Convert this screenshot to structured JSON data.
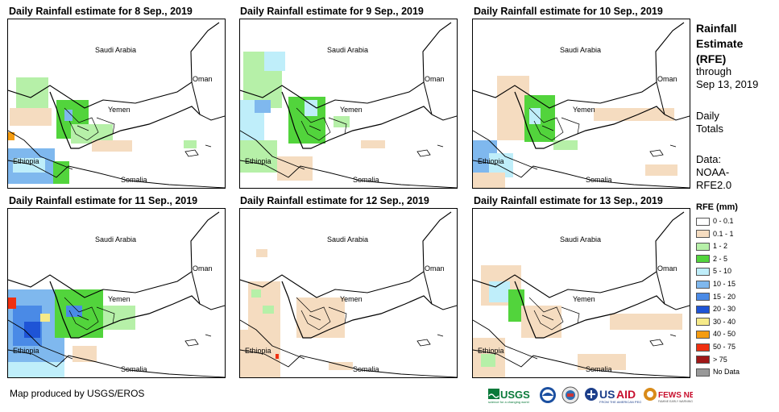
{
  "panels": [
    {
      "title": "Daily Rainfall estimate for 8 Sep., 2019"
    },
    {
      "title": "Daily Rainfall estimate for 9 Sep., 2019"
    },
    {
      "title": "Daily Rainfall estimate for 10 Sep., 2019"
    },
    {
      "title": "Daily Rainfall estimate for 11 Sep., 2019"
    },
    {
      "title": "Daily Rainfall estimate for 12 Sep., 2019"
    },
    {
      "title": "Daily Rainfall estimate for 13 Sep., 2019"
    }
  ],
  "map_labels": {
    "saudi": "Saudi Arabia",
    "oman": "Oman",
    "yemen": "Yemen",
    "ethiopia": "Ethiopia",
    "somalia": "Somalia"
  },
  "legend": {
    "heading": [
      "Rainfall",
      "Estimate",
      "(RFE)"
    ],
    "through": "through",
    "date": "Sep 13, 2019",
    "daily": [
      "Daily",
      "Totals"
    ],
    "data": [
      "Data:",
      "NOAA-",
      "RFE2.0"
    ],
    "rfe_title": "RFE (mm)",
    "items": [
      {
        "label": "0 - 0.1",
        "color": "#ffffff"
      },
      {
        "label": "0.1 - 1",
        "color": "#f5dcc0"
      },
      {
        "label": "1 - 2",
        "color": "#b6f0a8"
      },
      {
        "label": "2 - 5",
        "color": "#52d43c"
      },
      {
        "label": "5 - 10",
        "color": "#bfeefa"
      },
      {
        "label": "10 - 15",
        "color": "#7fb8ee"
      },
      {
        "label": "15 - 20",
        "color": "#4a8ae6"
      },
      {
        "label": "20 - 30",
        "color": "#1e54d6"
      },
      {
        "label": "30 - 40",
        "color": "#f6ea88"
      },
      {
        "label": "40 - 50",
        "color": "#f59c10"
      },
      {
        "label": "50 - 75",
        "color": "#f03010"
      },
      {
        "label": "> 75",
        "color": "#a01818"
      },
      {
        "label": "No Data",
        "color": "#999999"
      }
    ]
  },
  "credit": "Map produced by USGS/EROS",
  "logos": [
    "USGS",
    "NOAA",
    "DOI",
    "USAID",
    "FEWS NET"
  ]
}
